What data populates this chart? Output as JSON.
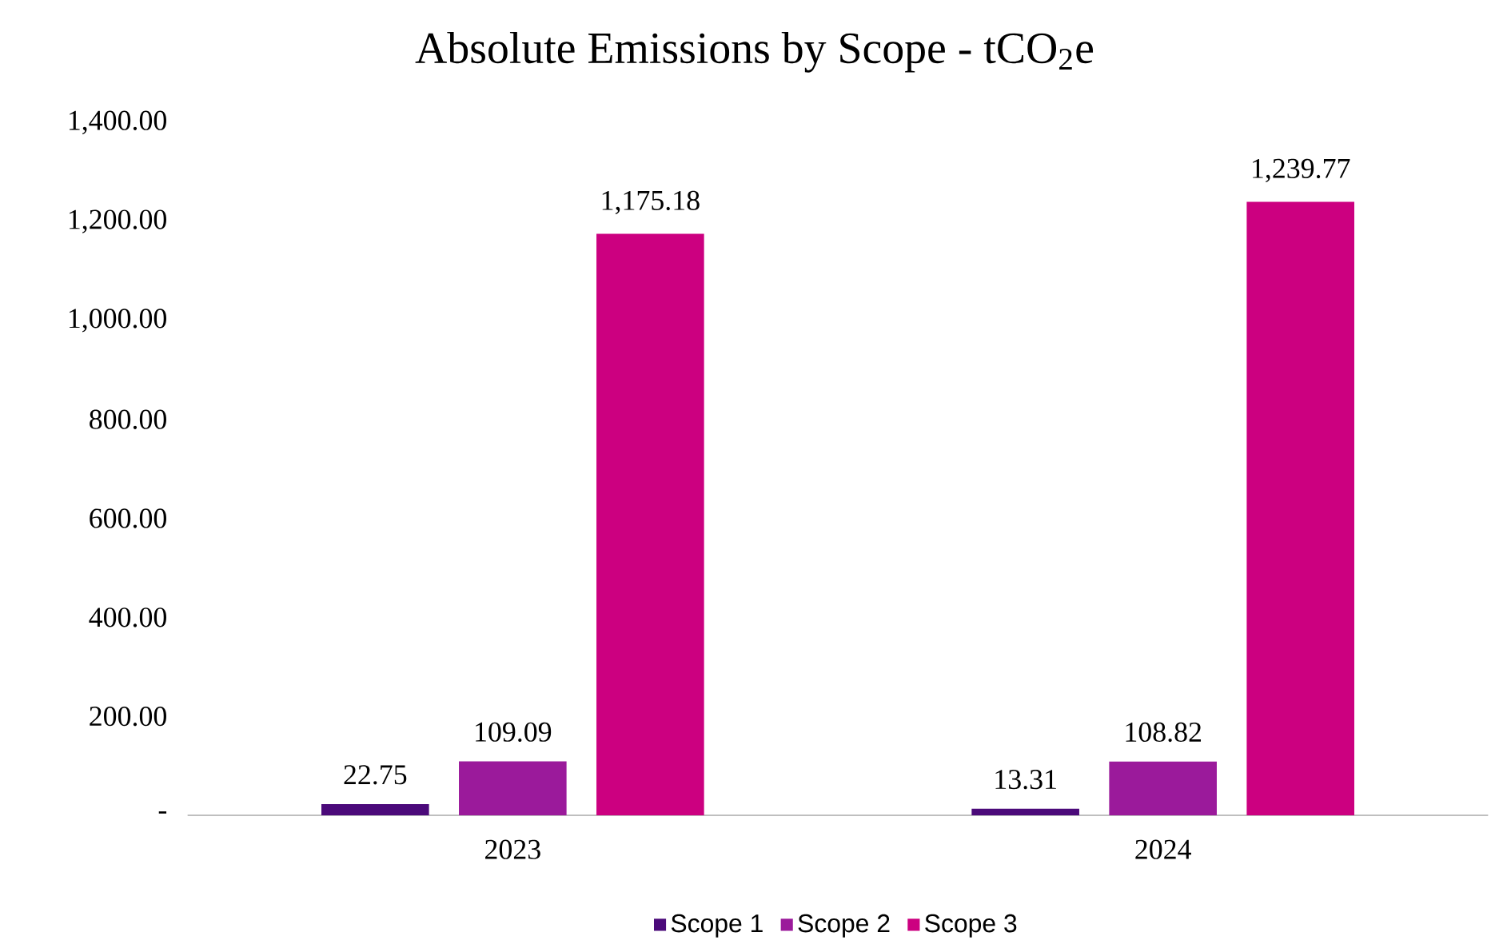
{
  "chart_data": {
    "type": "bar",
    "title": "Absolute Emissions by Scope - tCO$_{2}$e",
    "categories": [
      "2023",
      "2024"
    ],
    "series": [
      {
        "name": "Scope 1",
        "color": "#4b0a7a",
        "values": [
          22.75,
          13.31
        ],
        "value_labels": [
          "22.75",
          "13.31"
        ]
      },
      {
        "name": "Scope 2",
        "color": "#9b1a9b",
        "values": [
          109.09,
          108.82
        ],
        "value_labels": [
          "109.09",
          "108.82"
        ]
      },
      {
        "name": "Scope 3",
        "color": "#cc0080",
        "values": [
          1175.18,
          1239.77
        ],
        "value_labels": [
          "1,175.18",
          "1,239.77"
        ]
      }
    ],
    "ylim": [
      0,
      1400
    ],
    "yticks": [
      {
        "value": 0,
        "label": "-"
      },
      {
        "value": 200,
        "label": "200.00"
      },
      {
        "value": 400,
        "label": "400.00"
      },
      {
        "value": 600,
        "label": "600.00"
      },
      {
        "value": 800,
        "label": "800.00"
      },
      {
        "value": 1000,
        "label": "1,000.00"
      },
      {
        "value": 1200,
        "label": "1,200.00"
      },
      {
        "value": 1400,
        "label": "1,400.00"
      }
    ],
    "grid": false,
    "legend": "bottom"
  }
}
